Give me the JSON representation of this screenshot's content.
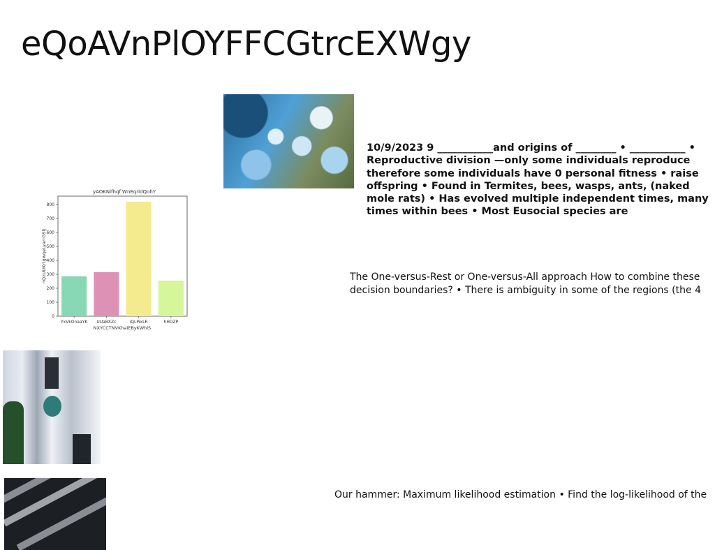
{
  "title": "eQoAVnPlOYFFCGtrcEXWgy",
  "paragraphs": {
    "bio": "10/9/2023 9 ___________and origins of ________ • ___________ • Reproductive division —only some individuals reproduce therefore some individuals have 0 personal fitness • raise offspring • Found in Termites, bees, wasps, ants, (naked mole rats) • Has evolved multiple independent times, many times within bees • Most Eusocial species are",
    "ovr": "The One-versus-Rest or One-versus-All approach How to combine these decision boundaries? • There is ambiguity in some of the regions (the 4",
    "mle": "Our hammer: Maximum likelihood estimation • Find the log-likelihood of the"
  },
  "images": {
    "abstract": "abstract-blue-painting",
    "building": "building-facade-photo",
    "beams": "dark-beams-photo"
  },
  "chart_data": {
    "type": "bar",
    "title": "yAOKNifhqf WnEqrldQohY",
    "xlabel": "NXYCCTNVKhaiEByKWhiS",
    "ylabel": "nQzUUKrtgwqeLyarrGSlJ",
    "categories": [
      "YxVkOnaaYK",
      "UUaBXZc",
      "iQLPixLR",
      "hHDZP"
    ],
    "values": [
      285,
      315,
      820,
      255
    ],
    "colors": [
      "#88d8b5",
      "#dd92b5",
      "#f4ea8e",
      "#d5f79a"
    ],
    "ylim": [
      0,
      860
    ],
    "yticks": [
      0,
      100,
      200,
      300,
      400,
      500,
      600,
      700,
      800
    ],
    "grid": false
  }
}
